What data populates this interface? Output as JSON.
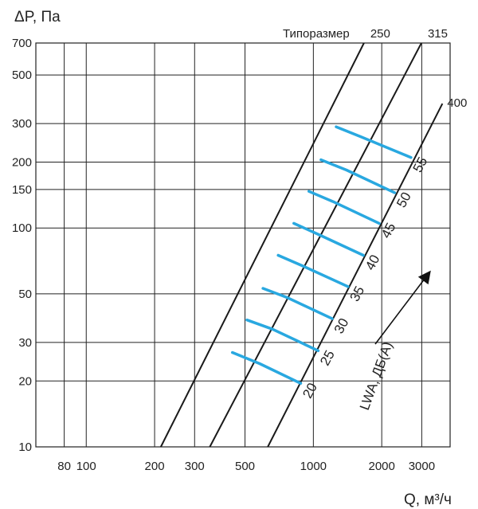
{
  "chart_data": {
    "type": "line",
    "ylabel": "ΔP, Па",
    "xlabel": "Q, м³/ч",
    "xscale": "log",
    "yscale": "log",
    "xlim": [
      60,
      4000
    ],
    "ylim": [
      10,
      700
    ],
    "x_ticks": [
      80,
      100,
      200,
      300,
      500,
      1000,
      2000,
      3000
    ],
    "y_ticks": [
      10,
      20,
      30,
      50,
      100,
      150,
      200,
      300,
      500,
      700
    ],
    "grid": true,
    "size_caption": "Типоразмер",
    "noise_caption": "LWA, ДБ(A)",
    "size_series": [
      {
        "name": "250",
        "points": [
          [
            213,
            10
          ],
          [
            1670,
            700
          ]
        ]
      },
      {
        "name": "315",
        "points": [
          [
            350,
            10
          ],
          [
            2990,
            700
          ]
        ]
      },
      {
        "name": "400",
        "points": [
          [
            630,
            10
          ],
          [
            3700,
            370
          ]
        ]
      }
    ],
    "noise_series": [
      {
        "name": "20",
        "points": [
          [
            440,
            27
          ],
          [
            580,
            24
          ],
          [
            880,
            19.5
          ]
        ]
      },
      {
        "name": "25",
        "points": [
          [
            510,
            38
          ],
          [
            660,
            34.5
          ],
          [
            1050,
            27.5
          ]
        ]
      },
      {
        "name": "30",
        "points": [
          [
            600,
            53
          ],
          [
            770,
            48
          ],
          [
            1210,
            38.5
          ]
        ]
      },
      {
        "name": "35",
        "points": [
          [
            700,
            75
          ],
          [
            900,
            67
          ],
          [
            1420,
            54
          ]
        ]
      },
      {
        "name": "40",
        "points": [
          [
            820,
            105
          ],
          [
            1040,
            94
          ],
          [
            1660,
            75
          ]
        ]
      },
      {
        "name": "45",
        "points": [
          [
            955,
            147
          ],
          [
            1220,
            132
          ],
          [
            1950,
            105
          ]
        ]
      },
      {
        "name": "50",
        "points": [
          [
            1080,
            205
          ],
          [
            1400,
            184
          ],
          [
            2280,
            145
          ]
        ]
      },
      {
        "name": "55",
        "points": [
          [
            1260,
            290
          ],
          [
            1620,
            261
          ],
          [
            2690,
            210
          ]
        ]
      }
    ],
    "colors": {
      "size_lines": "#1a1a1a",
      "noise_lines": "#29a8e0",
      "grid": "#222222"
    }
  }
}
